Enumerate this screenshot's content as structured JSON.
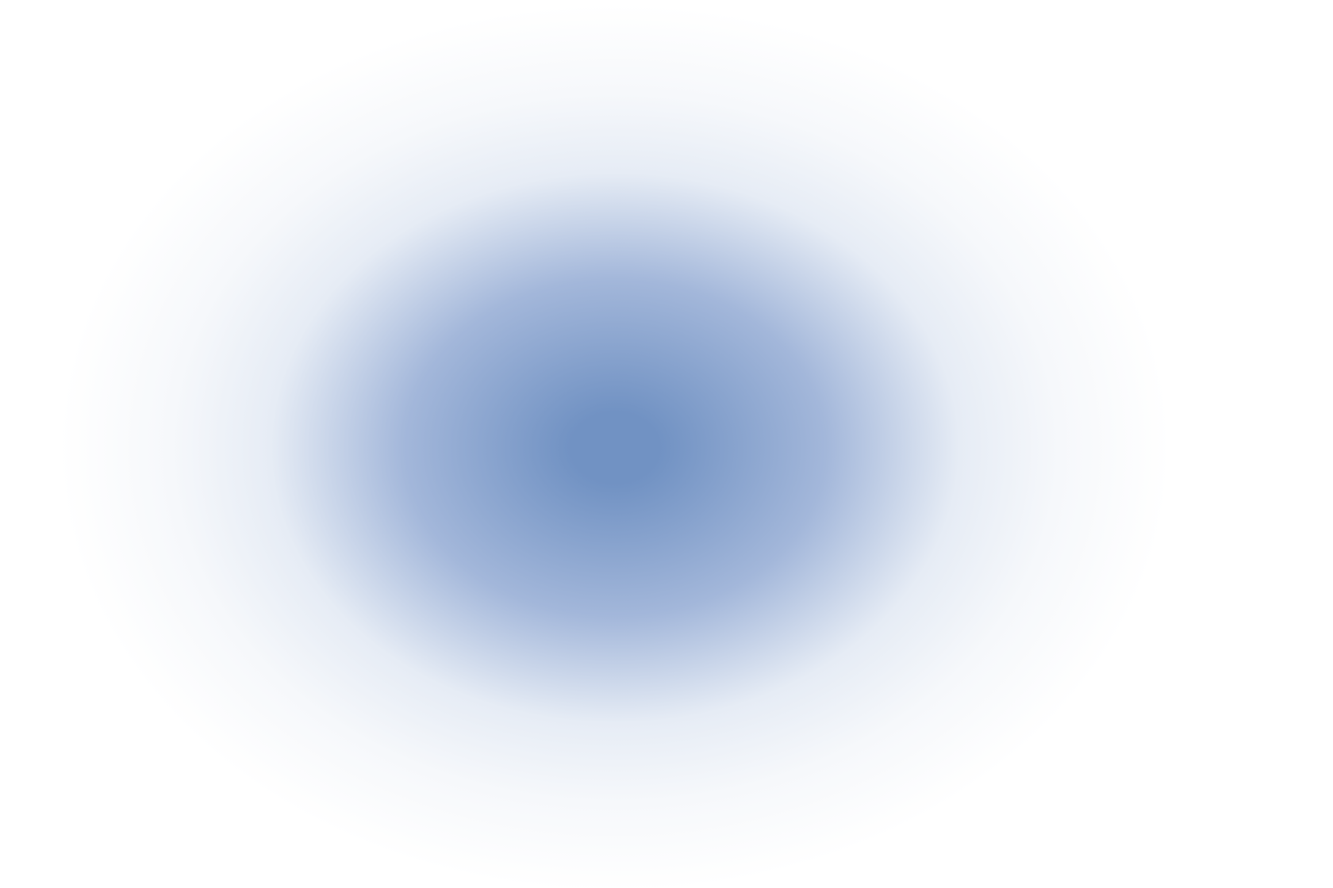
{
  "background_color": "#ffffff",
  "gradient": {
    "center_color": "#7192c3",
    "mid_color": "#a3b7da",
    "outer_color": "#e6ecf5",
    "edge_color": "#ffffff"
  }
}
